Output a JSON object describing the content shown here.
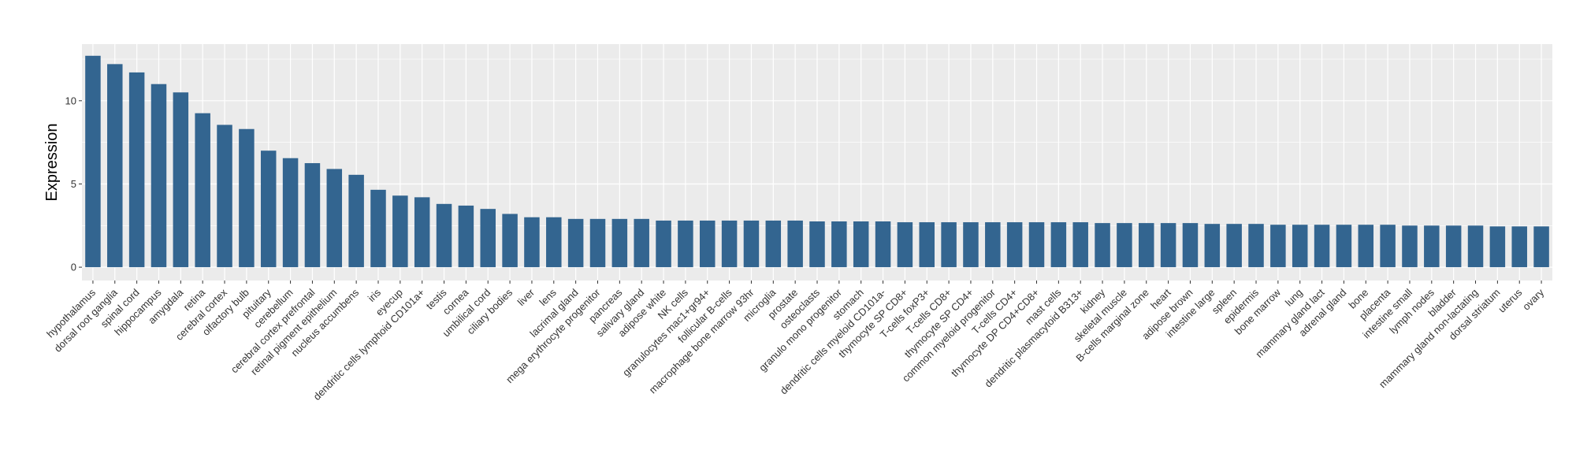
{
  "chart_data": {
    "type": "bar",
    "title": "",
    "xlabel": "",
    "ylabel": "Expression",
    "ylim": [
      -0.8,
      13.4
    ],
    "yticks": [
      0,
      5,
      10
    ],
    "grid": true,
    "bar_color": "#336590",
    "panel_color": "#EBEBEB",
    "grid_color": "#FFFFFF",
    "categories": [
      "hypothalamus",
      "dorsal root ganglia",
      "spinal cord",
      "hippocampus",
      "amygdala",
      "retina",
      "cerebral cortex",
      "olfactory bulb",
      "pituitary",
      "cerebellum",
      "cerebral cortex prefrontal",
      "retinal pigment epithelium",
      "nucleus accumbens",
      "iris",
      "eyecup",
      "dendritic cells lymphoid CD101a+",
      "testis",
      "cornea",
      "umbilical cord",
      "ciliary bodies",
      "liver",
      "lens",
      "lacrimal gland",
      "mega erythrocyte progenitor",
      "pancreas",
      "salivary gland",
      "adipose white",
      "NK cells",
      "granulocytes mac1+gr94+",
      "follicular B-cells",
      "macrophage bone marrow 93hr",
      "microglia",
      "prostate",
      "osteoclasts",
      "granulo mono progenitor",
      "stomach",
      "dendritic cells myeloid CD101a-",
      "thymocyte SP CD8+",
      "T-cells foxP3+",
      "T-cells CD8+",
      "thymocyte SP CD4+",
      "common myeloid progenitor",
      "T-cells CD4+",
      "thymocyte DP CD4+CD8+",
      "mast cells",
      "dendritic plasmacytoid B313+",
      "kidney",
      "skeletal muscle",
      "B-cells marginal zone",
      "heart",
      "adipose brown",
      "intestine large",
      "spleen",
      "epidermis",
      "bone marrow",
      "lung",
      "mammary gland  lact",
      "adrenal gland",
      "bone",
      "placenta",
      "intestine small",
      "lymph nodes",
      "bladder",
      "mammary gland non-lactating",
      "dorsal striatum",
      "uterus",
      "ovary"
    ],
    "values": [
      12.7,
      12.2,
      11.7,
      11.0,
      10.5,
      9.25,
      8.55,
      8.3,
      7.0,
      6.55,
      6.25,
      5.9,
      5.55,
      4.65,
      4.3,
      4.2,
      3.8,
      3.7,
      3.5,
      3.2,
      3.0,
      3.0,
      2.9,
      2.9,
      2.9,
      2.9,
      2.8,
      2.8,
      2.8,
      2.8,
      2.8,
      2.8,
      2.8,
      2.75,
      2.75,
      2.75,
      2.75,
      2.7,
      2.7,
      2.7,
      2.7,
      2.7,
      2.7,
      2.7,
      2.7,
      2.7,
      2.65,
      2.65,
      2.65,
      2.65,
      2.65,
      2.6,
      2.6,
      2.6,
      2.55,
      2.55,
      2.55,
      2.55,
      2.55,
      2.55,
      2.5,
      2.5,
      2.5,
      2.5,
      2.45,
      2.45,
      2.45
    ]
  }
}
